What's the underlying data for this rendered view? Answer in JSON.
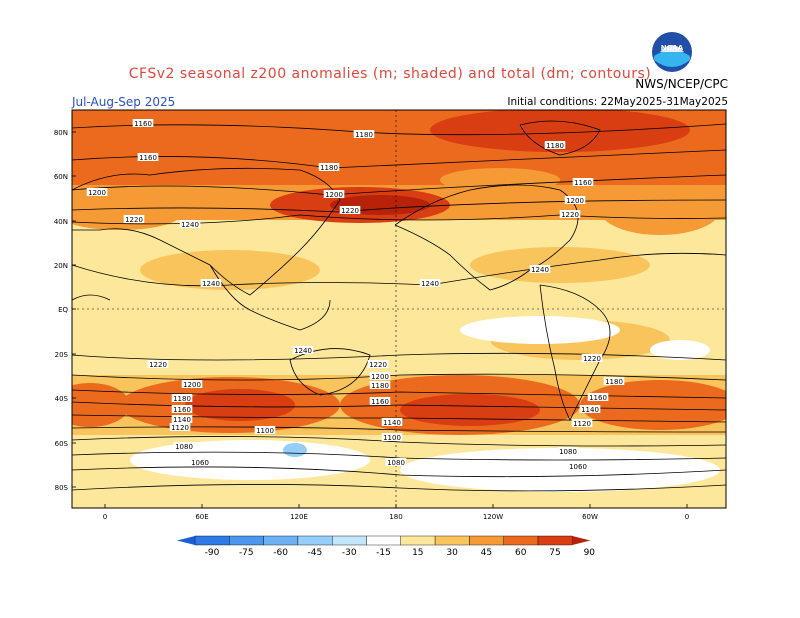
{
  "title": "CFSv2 seasonal z200 anomalies (m; shaded) and total (dm; contours)",
  "season": "Jul-Aug-Sep 2025",
  "initial_conditions": "Initial conditions: 22May2025-31May2025",
  "agency": "NWS/NCEP/CPC",
  "logo_text": "NOAA",
  "lat_labels": [
    "80N",
    "60N",
    "40N",
    "20N",
    "EQ",
    "20S",
    "40S",
    "60S",
    "80S"
  ],
  "lon_labels": [
    "0",
    "60E",
    "120E",
    "180",
    "120W",
    "60W",
    "0"
  ],
  "colorbar": {
    "ticks": [
      "-90",
      "-75",
      "-60",
      "-45",
      "-30",
      "-15",
      "15",
      "30",
      "45",
      "60",
      "75",
      "90"
    ],
    "colors": [
      "#1b5fd8",
      "#2d7ae8",
      "#4a97f0",
      "#6bb2f5",
      "#95cef8",
      "#c2e6fb",
      "#ffffff",
      "#fde79a",
      "#f9c45c",
      "#f59a35",
      "#ec6a1e",
      "#d93d12",
      "#b82208"
    ]
  },
  "contour_labels": {
    "north": [
      "1160",
      "1180",
      "1160",
      "1180",
      "1180",
      "1160",
      "1200",
      "1200",
      "1200",
      "1220",
      "1220",
      "1220",
      "1240",
      "1240",
      "1240",
      "1240"
    ],
    "south": [
      "1240",
      "1220",
      "1220",
      "1220",
      "1200",
      "1200",
      "1180",
      "1180",
      "1180",
      "1160",
      "1160",
      "1160",
      "1140",
      "1140",
      "1140",
      "1120",
      "1120",
      "1100",
      "1100",
      "1080",
      "1080",
      "1080",
      "1060",
      "1060"
    ]
  }
}
